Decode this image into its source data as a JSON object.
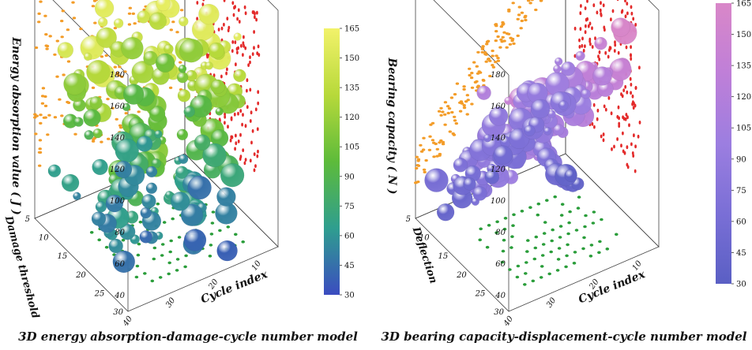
{
  "chart_data": [
    {
      "type": "scatter",
      "subtype": "3d-bubble",
      "title": "3D energy absorption-damage-cycle number model",
      "z_axis": {
        "label": "Energy absorption value ( J )",
        "ticks": [
          40,
          60,
          80,
          100,
          120,
          140,
          160,
          180
        ]
      },
      "y_axis": {
        "label": "Damage threshold",
        "ticks": [
          5,
          10,
          15,
          20,
          25,
          30
        ]
      },
      "x_axis": {
        "label": "Cycle index",
        "ticks": [
          10,
          20,
          30,
          40
        ]
      },
      "projections": {
        "xz": "orange",
        "yz": "red",
        "xy": "green"
      },
      "colorbar": {
        "ticks": [
          30,
          45,
          60,
          75,
          90,
          105,
          120,
          135,
          150,
          165
        ],
        "range": [
          30,
          165
        ],
        "colors": [
          "#3b4cc0",
          "#2f9e8f",
          "#5dbb3a",
          "#b7d93a",
          "#f2f26a"
        ]
      },
      "series": [
        {
          "z": [
            160,
            158,
            150,
            148,
            145,
            140,
            138,
            135,
            130,
            128,
            125,
            120,
            118,
            115,
            112,
            110,
            105,
            100,
            98,
            95,
            90,
            88,
            85,
            80,
            78,
            75,
            70,
            68,
            65,
            60,
            58,
            55,
            50,
            48,
            45,
            42,
            40,
            38
          ],
          "x": [
            25,
            28,
            22,
            31,
            26,
            30,
            18,
            24,
            34,
            21,
            28,
            16,
            26,
            33,
            22,
            19,
            29,
            24,
            35,
            14,
            27,
            21,
            31,
            18,
            25,
            33,
            20,
            28,
            15,
            24,
            30,
            19,
            26,
            22,
            33,
            17,
            25,
            29
          ],
          "y": [
            18,
            22,
            15,
            20,
            25,
            12,
            24,
            16,
            19,
            26,
            14,
            21,
            28,
            13,
            17,
            23,
            10,
            19,
            15,
            25,
            12,
            20,
            8,
            17,
            22,
            14,
            11,
            18,
            24,
            9,
            16,
            21,
            12,
            7,
            18,
            14,
            10,
            6
          ]
        }
      ]
    },
    {
      "type": "scatter",
      "subtype": "3d-bubble",
      "title": "3D bearing capacity-displacement-cycle number model",
      "z_axis": {
        "label": "Bearing capacity ( N )",
        "ticks": [
          40,
          60,
          80,
          100,
          120,
          140,
          160,
          180
        ]
      },
      "y_axis": {
        "label": "Deflection",
        "ticks": [
          5,
          10,
          15,
          20,
          25,
          30
        ]
      },
      "x_axis": {
        "label": "Cycle index",
        "ticks": [
          10,
          20,
          30,
          40
        ]
      },
      "projections": {
        "xz": "orange",
        "yz": "red",
        "xy": "green"
      },
      "colorbar": {
        "ticks": [
          30,
          45,
          60,
          75,
          90,
          105,
          120,
          135,
          150,
          165
        ],
        "range": [
          30,
          165
        ],
        "colors": [
          "#5a5fc4",
          "#7a6fd6",
          "#9c7ee0",
          "#bf7fd8",
          "#d987c8"
        ]
      },
      "series": [
        {
          "z": [
            150,
            145,
            140,
            135,
            130,
            125,
            120,
            115,
            110,
            105,
            100,
            95,
            90,
            85,
            80,
            75,
            70,
            65,
            60,
            55,
            50,
            48,
            45,
            42,
            40,
            38,
            35,
            62,
            88,
            118
          ],
          "x": [
            10,
            12,
            11,
            14,
            13,
            15,
            16,
            18,
            17,
            19,
            20,
            21,
            22,
            23,
            24,
            25,
            26,
            27,
            28,
            29,
            30,
            31,
            32,
            33,
            34,
            35,
            36,
            21,
            18,
            14
          ],
          "y": [
            8,
            10,
            12,
            9,
            11,
            13,
            14,
            12,
            15,
            13,
            16,
            14,
            17,
            15,
            18,
            16,
            19,
            17,
            20,
            18,
            21,
            19,
            22,
            20,
            23,
            21,
            24,
            25,
            24,
            22
          ]
        }
      ]
    }
  ],
  "captions": {
    "left": "3D energy absorption-damage-cycle number model",
    "right": "3D bearing capacity-displacement-cycle number model"
  }
}
